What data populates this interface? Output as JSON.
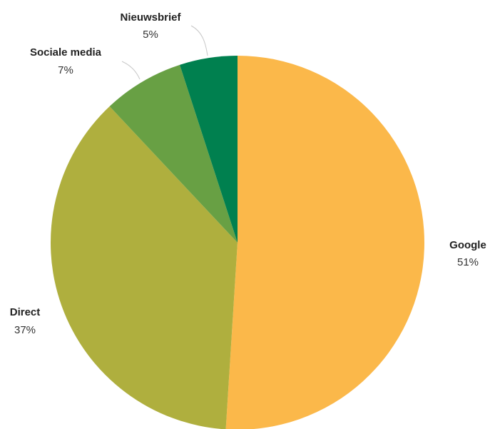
{
  "chart_data": {
    "type": "pie",
    "title": "",
    "slices": [
      {
        "label": "Google",
        "value": 51,
        "value_label": "51%",
        "color": "#FBB84A"
      },
      {
        "label": "Direct",
        "value": 37,
        "value_label": "37%",
        "color": "#AFAF3E"
      },
      {
        "label": "Sociale media",
        "value": 7,
        "value_label": "7%",
        "color": "#68A044"
      },
      {
        "label": "Nieuwsbrief",
        "value": 5,
        "value_label": "5%",
        "color": "#00804F"
      }
    ],
    "start": "12 o'clock",
    "direction": "clockwise",
    "legend": "none"
  }
}
